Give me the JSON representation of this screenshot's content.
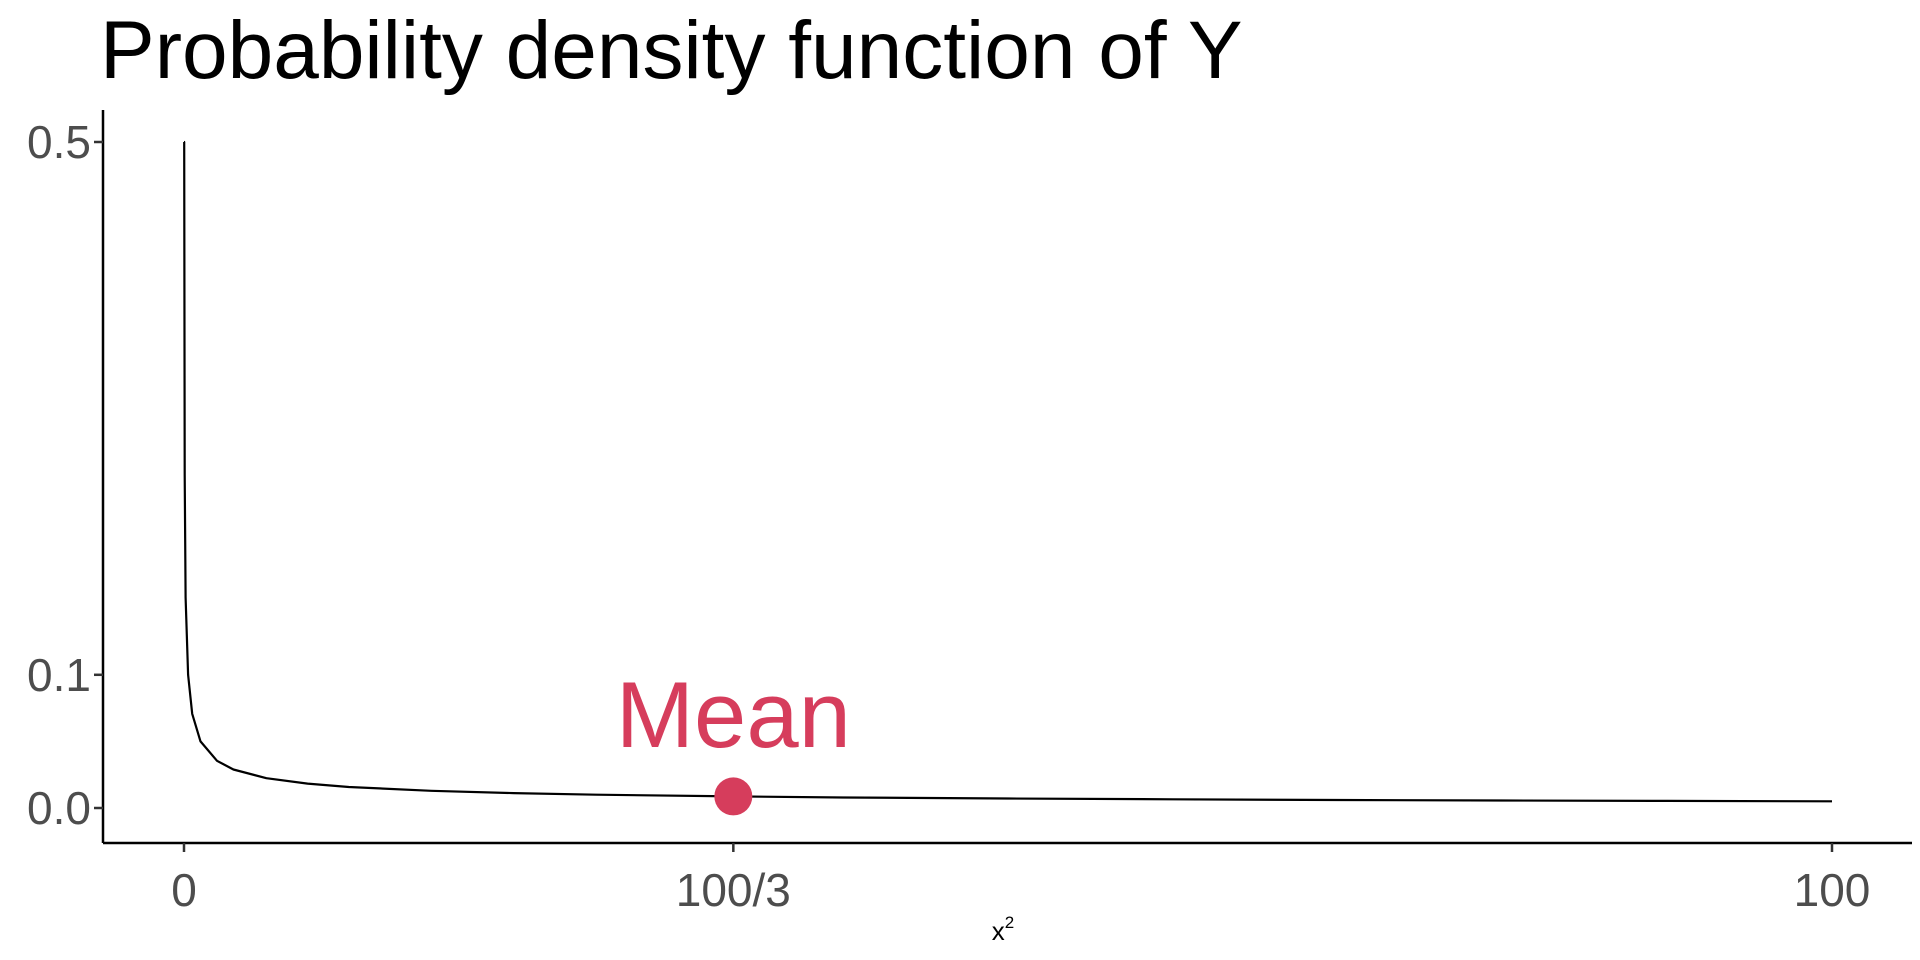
{
  "chart_data": {
    "type": "line",
    "title": "Probability density function of Y",
    "xlabel": "x",
    "xlabel_superscript": "2",
    "ylabel": "",
    "xlim": [
      0,
      100
    ],
    "ylim": [
      0,
      0.5
    ],
    "x_ticks": [
      {
        "value": 0,
        "label": "0"
      },
      {
        "value": 33.333,
        "label": "100/3"
      },
      {
        "value": 100,
        "label": "100"
      }
    ],
    "y_ticks": [
      {
        "value": 0.0,
        "label": "0.0"
      },
      {
        "value": 0.1,
        "label": "0.1"
      },
      {
        "value": 0.5,
        "label": "0.5"
      }
    ],
    "series": [
      {
        "color": "#000000",
        "x": [
          0.0025,
          0.01,
          0.04,
          0.1,
          0.25,
          0.5,
          1,
          2,
          3,
          5,
          7.5,
          10,
          15,
          20,
          25,
          33.333,
          40,
          50,
          60,
          70,
          80,
          90,
          100
        ],
        "y": [
          0.5,
          0.5,
          0.25,
          0.158,
          0.1,
          0.0707,
          0.05,
          0.0354,
          0.0289,
          0.0224,
          0.0183,
          0.0158,
          0.0129,
          0.0112,
          0.01,
          0.0087,
          0.0079,
          0.0071,
          0.0065,
          0.006,
          0.0056,
          0.0053,
          0.005
        ]
      }
    ],
    "points": [
      {
        "x": 33.333,
        "y": 0.0087,
        "color": "#d63d5c"
      }
    ],
    "annotations": [
      {
        "text": "Mean",
        "x": 33.333,
        "y": 0.07,
        "color": "#d63d5c"
      }
    ],
    "grid": false,
    "legend": "none"
  }
}
